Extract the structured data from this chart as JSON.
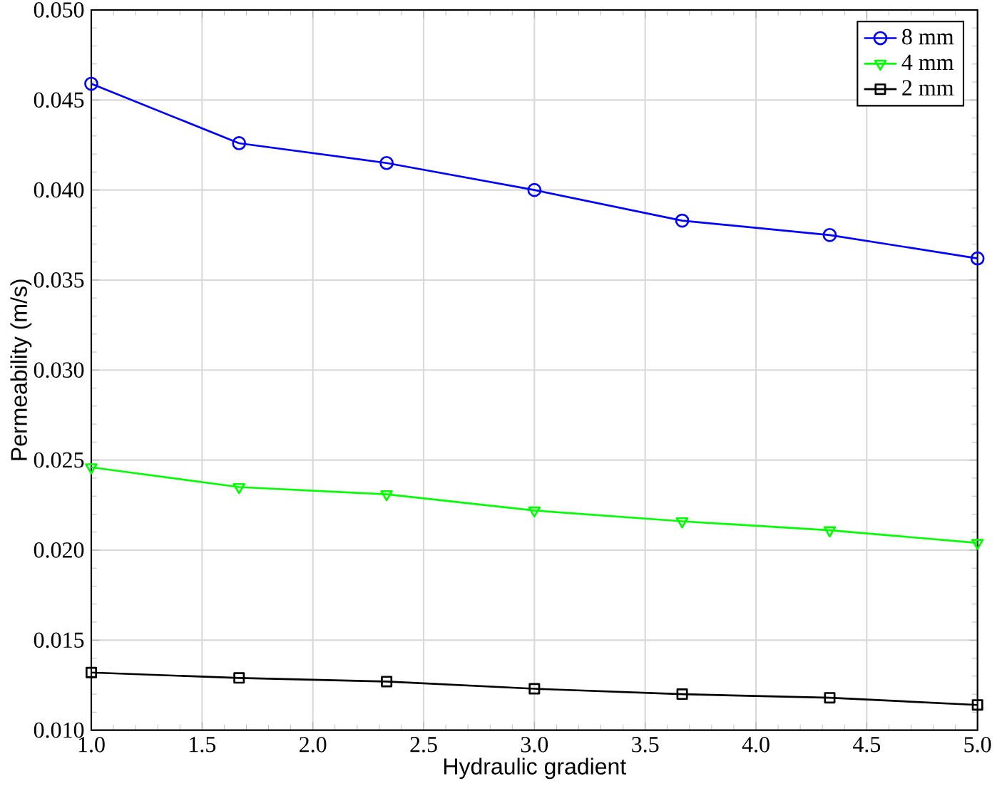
{
  "chart_data": {
    "type": "line",
    "xlabel": "Hydraulic gradient",
    "ylabel": "Permeability (m/s)",
    "x": [
      1.0,
      1.667,
      2.333,
      3.0,
      3.667,
      4.333,
      5.0
    ],
    "series": [
      {
        "name": "8 mm",
        "color": "#0000ff",
        "marker": "circle",
        "values": [
          0.0459,
          0.0426,
          0.0415,
          0.04,
          0.0383,
          0.0375,
          0.0362
        ]
      },
      {
        "name": "4 mm",
        "color": "#00ff00",
        "marker": "triangle",
        "values": [
          0.0246,
          0.0235,
          0.0231,
          0.0222,
          0.0216,
          0.0211,
          0.0204
        ]
      },
      {
        "name": "2 mm",
        "color": "#000000",
        "marker": "square",
        "values": [
          0.0132,
          0.0129,
          0.0127,
          0.0123,
          0.012,
          0.0118,
          0.0114
        ]
      }
    ],
    "xlim": [
      1.0,
      5.0
    ],
    "ylim": [
      0.01,
      0.05
    ],
    "xticks": [
      {
        "value": 1.0,
        "label": "1.0"
      },
      {
        "value": 1.5,
        "label": "1.5"
      },
      {
        "value": 2.0,
        "label": "2.0"
      },
      {
        "value": 2.5,
        "label": "2.5"
      },
      {
        "value": 3.0,
        "label": "3.0"
      },
      {
        "value": 3.5,
        "label": "3.5"
      },
      {
        "value": 4.0,
        "label": "4.0"
      },
      {
        "value": 4.5,
        "label": "4.5"
      },
      {
        "value": 5.0,
        "label": "5.0"
      }
    ],
    "yticks": [
      {
        "value": 0.01,
        "label": "0.010"
      },
      {
        "value": 0.015,
        "label": "0.015"
      },
      {
        "value": 0.02,
        "label": "0.020"
      },
      {
        "value": 0.025,
        "label": "0.025"
      },
      {
        "value": 0.03,
        "label": "0.030"
      },
      {
        "value": 0.035,
        "label": "0.035"
      },
      {
        "value": 0.04,
        "label": "0.040"
      },
      {
        "value": 0.045,
        "label": "0.045"
      },
      {
        "value": 0.05,
        "label": "0.050"
      }
    ],
    "grid": true,
    "legend": "top right",
    "line_style": "solid"
  }
}
